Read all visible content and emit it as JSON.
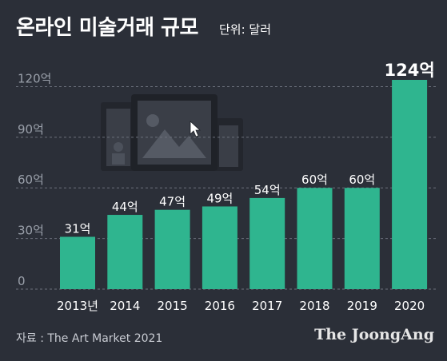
{
  "title": "온라인 미술거래 규모",
  "unit": "단위: 달러",
  "source": "자료 : The Art Market 2021",
  "brand": "The JoongAng",
  "colors": {
    "background": "#2b2f38",
    "bar": "#2fb58f",
    "grid": "#6c717c",
    "tick": "#9aa0aa",
    "text": "#ffffff"
  },
  "chart_data": {
    "type": "bar",
    "categories": [
      "2013년",
      "2014",
      "2015",
      "2016",
      "2017",
      "2018",
      "2019",
      "2020"
    ],
    "values": [
      31,
      44,
      47,
      49,
      54,
      60,
      60,
      124
    ],
    "data_labels": [
      "31억",
      "44억",
      "47억",
      "49억",
      "54억",
      "60억",
      "60억",
      "124억"
    ],
    "y_ticks": [
      0,
      30,
      60,
      90,
      120
    ],
    "y_tick_labels": [
      "0",
      "30억",
      "60억",
      "90억",
      "120억"
    ],
    "ylim": [
      0,
      124
    ],
    "grid": true,
    "grid_style": "dashed-horizontal",
    "highlight_index": 7,
    "decorative_icon": "devices-gallery-icon"
  }
}
